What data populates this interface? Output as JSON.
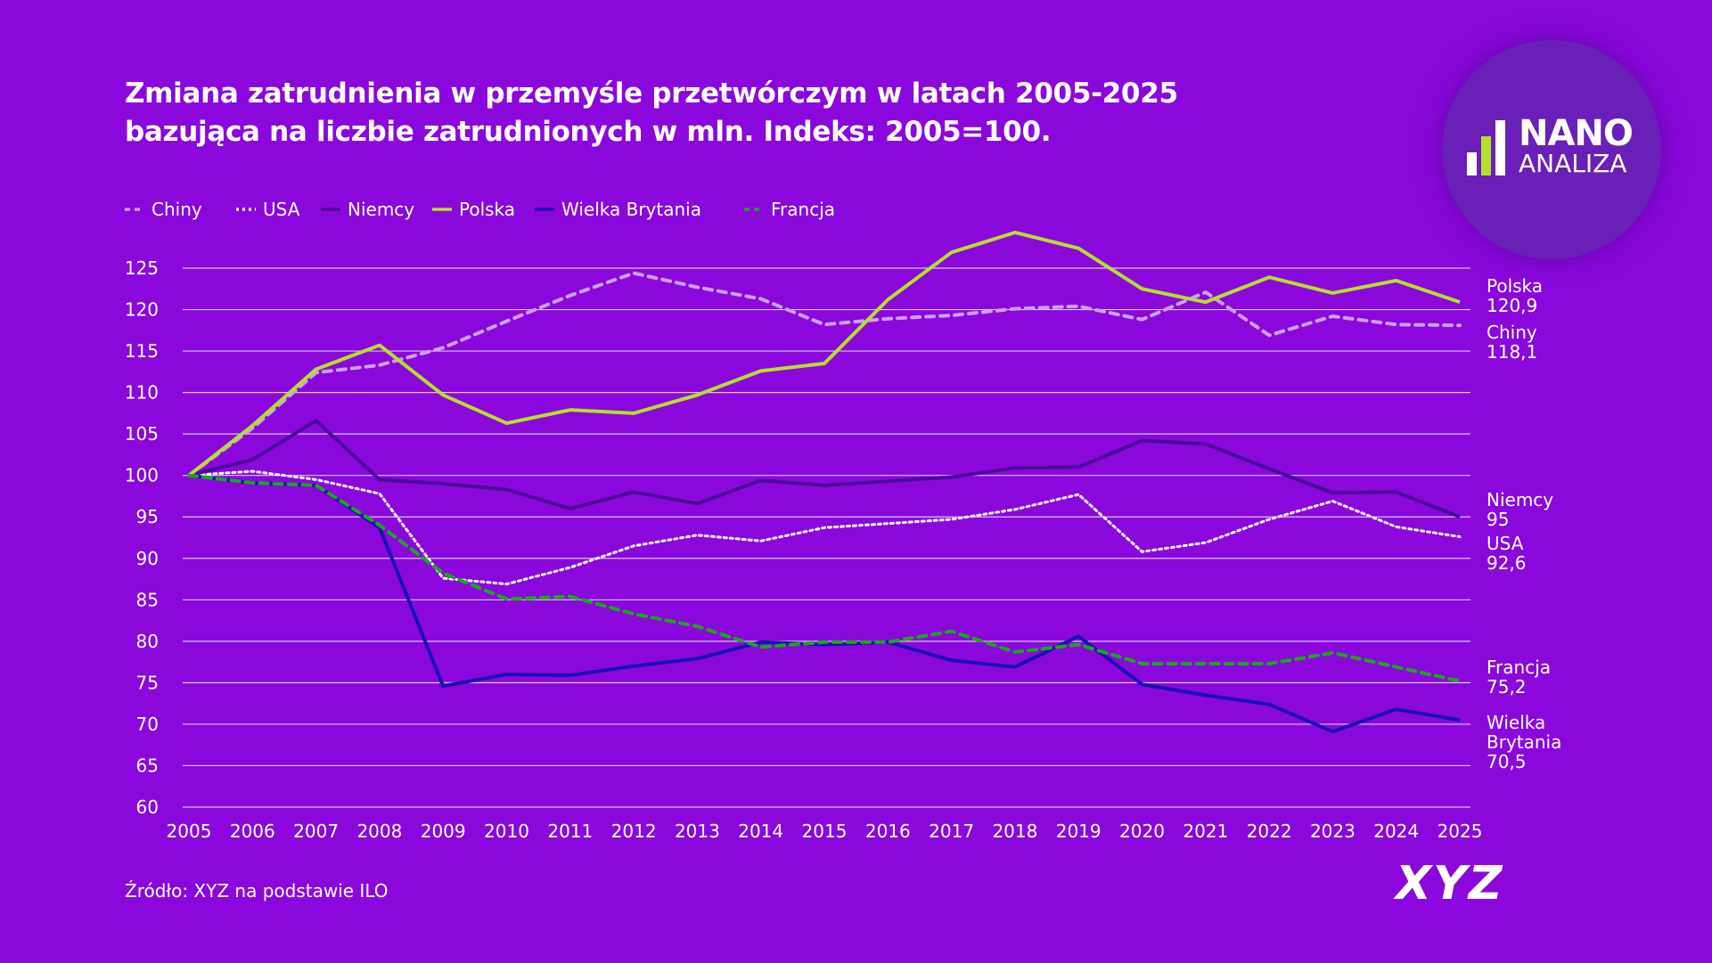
{
  "title_line1": "Zmiana zatrudnienia w przemyśle przetwórczym w latach 2005-2025",
  "title_line2": "bazująca na liczbie zatrudnionych w mln. Indeks: 2005=100.",
  "source": "Źródło: XYZ na podstawie ILO",
  "logo": {
    "line1": "NANO",
    "line2": "ANALIZA",
    "colors": [
      "#ffffff",
      "#b5e02a"
    ]
  },
  "brand": "XYZ",
  "chart_data": {
    "type": "line",
    "title": "Zmiana zatrudnienia w przemyśle przetwórczym w latach 2005-2025 bazująca na liczbie zatrudnionych w mln. Indeks: 2005=100.",
    "xlabel": "",
    "ylabel": "",
    "ylim": [
      60,
      125
    ],
    "yticks": [
      60,
      65,
      70,
      75,
      80,
      85,
      90,
      95,
      100,
      105,
      110,
      115,
      120,
      125
    ],
    "grid": true,
    "legend": "top-left",
    "x": [
      2005,
      2006,
      2007,
      2008,
      2009,
      2010,
      2011,
      2012,
      2013,
      2014,
      2015,
      2016,
      2017,
      2018,
      2019,
      2020,
      2021,
      2022,
      2023,
      2024,
      2025
    ],
    "series": [
      {
        "name": "Chiny",
        "color": "#c9a0ec",
        "style": "dashed",
        "end_label": "Chiny",
        "end_value": "118,1",
        "values": [
          100,
          105.7,
          112.4,
          113.3,
          115.4,
          118.6,
          121.7,
          124.4,
          122.7,
          121.3,
          118.2,
          118.9,
          119.3,
          120.1,
          120.4,
          118.8,
          122.1,
          116.9,
          119.2,
          118.2,
          118.1
        ]
      },
      {
        "name": "USA",
        "color": "#ffffff",
        "style": "dotted",
        "end_label": "USA",
        "end_value": "92,6",
        "values": [
          100,
          100.5,
          99.5,
          97.8,
          87.6,
          86.9,
          88.9,
          91.5,
          92.8,
          92.1,
          93.7,
          94.2,
          94.7,
          95.9,
          97.7,
          90.8,
          91.9,
          94.7,
          96.9,
          93.8,
          92.6
        ]
      },
      {
        "name": "Niemcy",
        "color": "#4b0a9c",
        "style": "solid",
        "end_label": "Niemcy",
        "end_value": "95",
        "values": [
          100,
          101.9,
          106.6,
          99.5,
          99,
          98.3,
          96,
          98,
          96.6,
          99.4,
          98.8,
          99.3,
          99.8,
          100.9,
          101,
          104.2,
          103.8,
          100.8,
          97.9,
          98,
          95
        ]
      },
      {
        "name": "Polska",
        "color": "#b5e02a",
        "style": "solid",
        "end_label": "Polska",
        "end_value": "120,9",
        "values": [
          100,
          106,
          112.8,
          115.7,
          109.7,
          106.3,
          107.9,
          107.5,
          109.7,
          112.6,
          113.5,
          121.2,
          126.9,
          129.3,
          127.4,
          122.5,
          120.9,
          123.9,
          122,
          123.5,
          120.9
        ]
      },
      {
        "name": "Wielka Brytania",
        "color": "#1a10b4",
        "style": "solid",
        "end_label": "Wielka Brytania",
        "end_value": "70,5",
        "values": [
          100,
          99.1,
          98.8,
          93.7,
          74.6,
          76,
          75.9,
          77,
          77.9,
          79.9,
          79.6,
          79.9,
          77.7,
          76.9,
          80.6,
          74.8,
          73.5,
          72.4,
          69.1,
          71.8,
          70.5
        ]
      },
      {
        "name": "Francja",
        "color": "#1aa81a",
        "style": "dashed",
        "end_label": "Francja",
        "end_value": "75,2",
        "values": [
          100,
          99.1,
          98.8,
          94,
          88.2,
          85.1,
          85.4,
          83.3,
          81.8,
          79.3,
          79.9,
          79.9,
          81.2,
          78.7,
          79.6,
          77.3,
          77.3,
          77.3,
          78.6,
          76.9,
          75.2
        ]
      }
    ]
  }
}
